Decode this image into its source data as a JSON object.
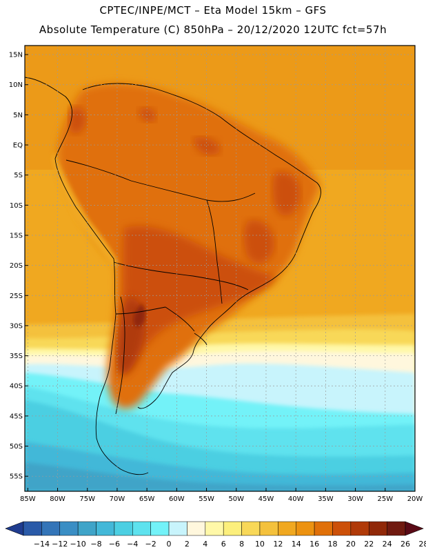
{
  "header": {
    "line1": "CPTEC/INPE/MCT –  Eta Model 15km – GFS",
    "line2": "Absolute Temperature (C) 850hPa – 20/12/2020 12UTC fct=57h"
  },
  "map": {
    "lat_labels": [
      "15N",
      "10N",
      "5N",
      "EQ",
      "5S",
      "10S",
      "15S",
      "20S",
      "25S",
      "30S",
      "35S",
      "40S",
      "45S",
      "50S",
      "55S"
    ],
    "lat_values": [
      15,
      10,
      5,
      0,
      -5,
      -10,
      -15,
      -20,
      -25,
      -30,
      -35,
      -40,
      -45,
      -50,
      -55
    ],
    "lon_labels": [
      "85W",
      "80W",
      "75W",
      "70W",
      "65W",
      "60W",
      "55W",
      "50W",
      "45W",
      "40W",
      "35W",
      "30W",
      "25W",
      "20W"
    ],
    "lon_values": [
      -85,
      -80,
      -75,
      -70,
      -65,
      -60,
      -55,
      -50,
      -45,
      -40,
      -35,
      -30,
      -25,
      -20
    ],
    "extent": {
      "lon_min": -85.5,
      "lon_max": -20,
      "lat_min": -57.5,
      "lat_max": 16.5
    }
  },
  "colorbar": {
    "labels": [
      "-14",
      "-12",
      "-10",
      "-8",
      "-6",
      "-4",
      "-2",
      "0",
      "2",
      "4",
      "6",
      "8",
      "10",
      "12",
      "14",
      "16",
      "18",
      "20",
      "22",
      "24",
      "26",
      "28"
    ],
    "colors": [
      "#1f3c8f",
      "#2a5aa8",
      "#3475b8",
      "#3a8ec4",
      "#3fa4c8",
      "#43b8d8",
      "#4ccfe2",
      "#5ee2ee",
      "#73f2f8",
      "#c8f4fc",
      "#fff7dd",
      "#fff8a8",
      "#fcef7c",
      "#f8d858",
      "#f4c13c",
      "#f0a820",
      "#ec9210",
      "#e07008",
      "#cc5008",
      "#b03a08",
      "#902808",
      "#701a10",
      "#5a0a16"
    ]
  }
}
